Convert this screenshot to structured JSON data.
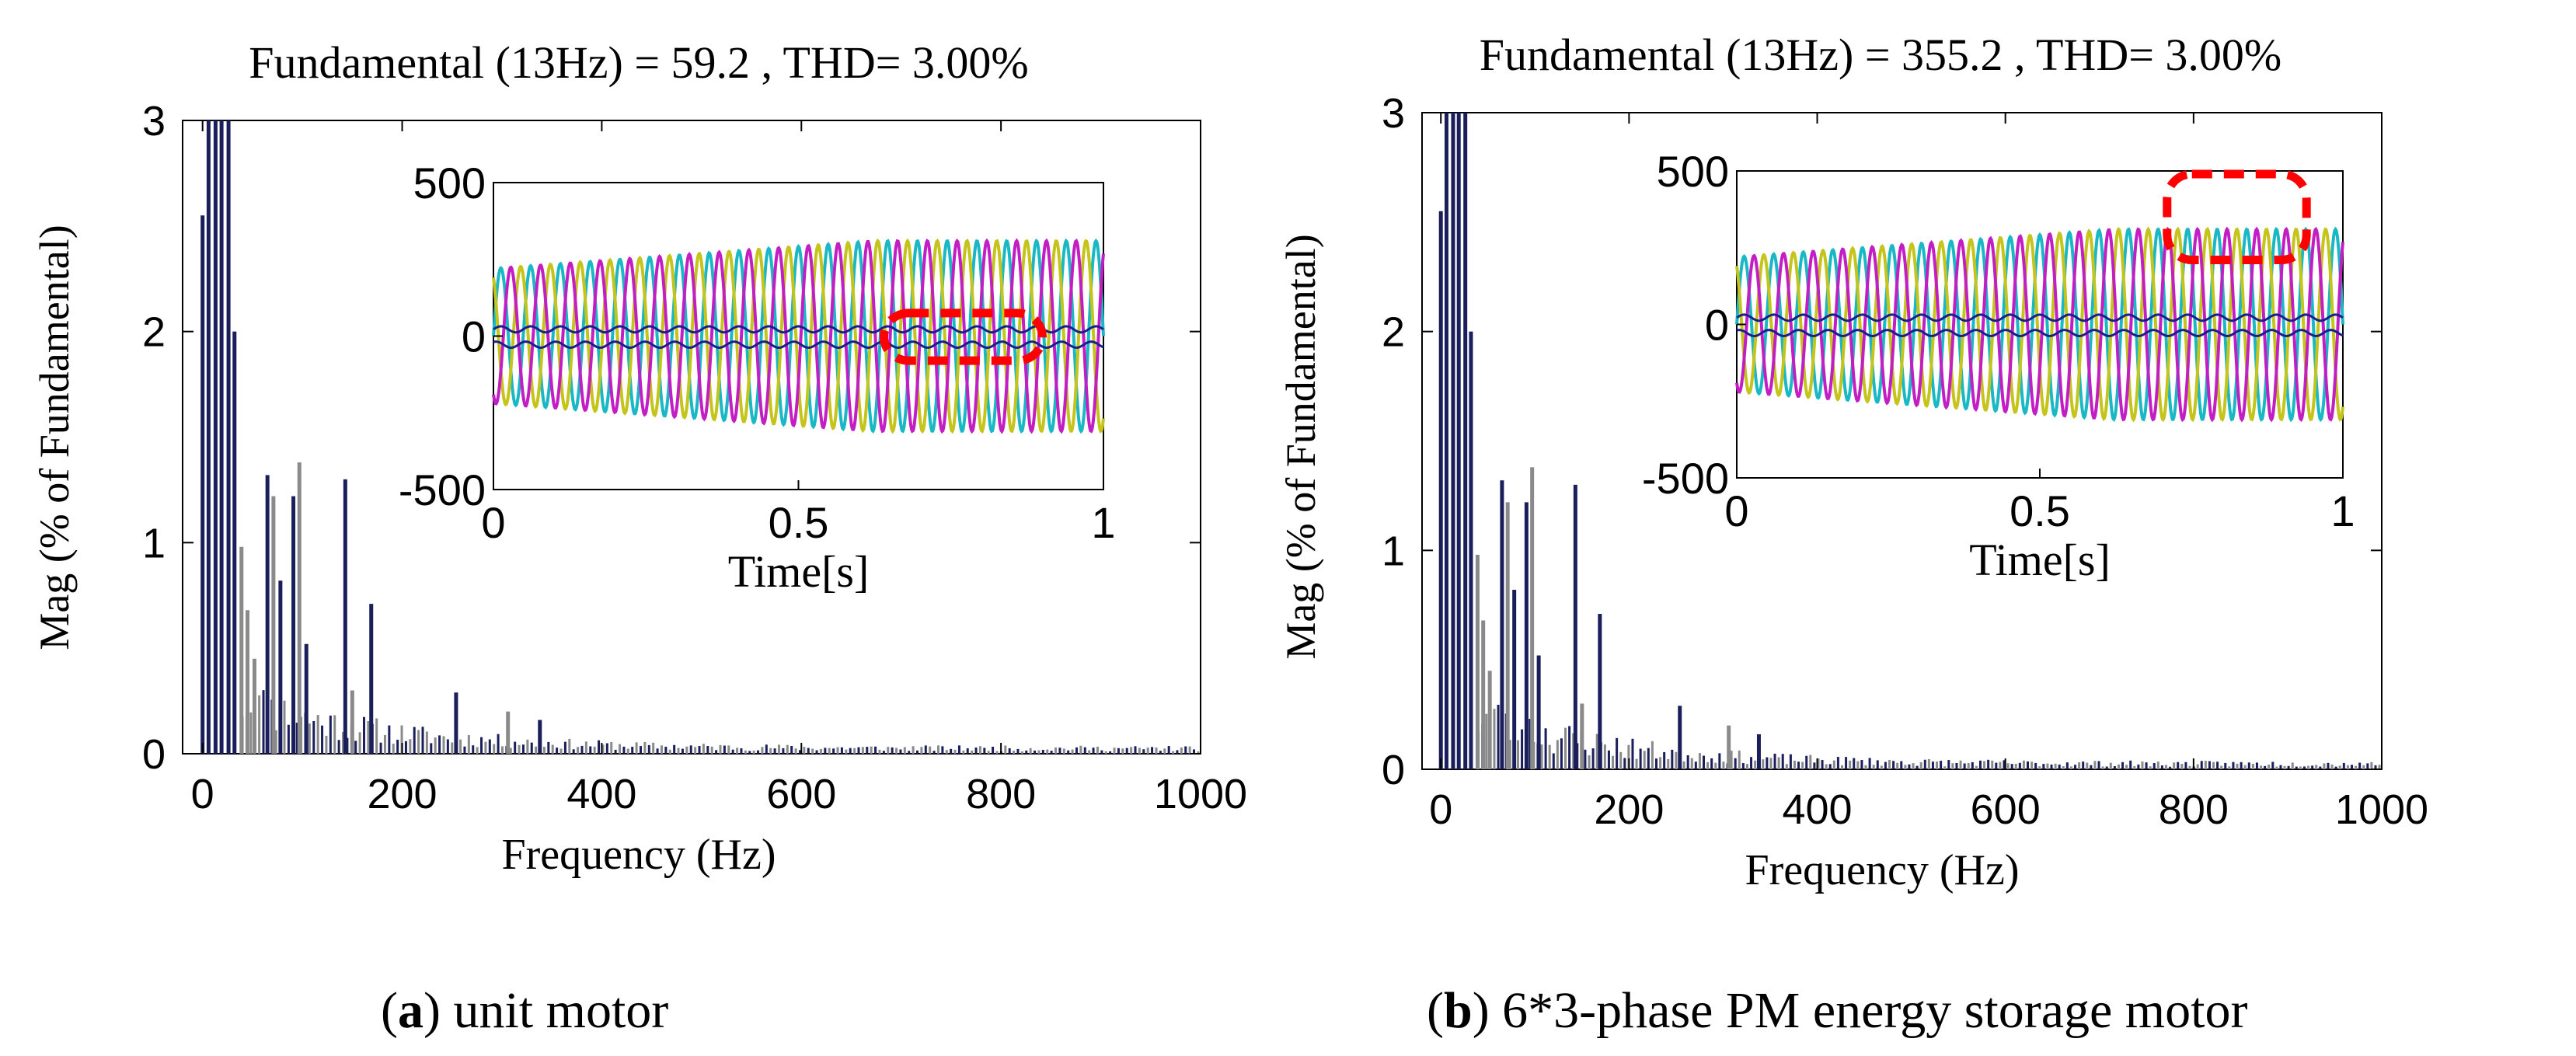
{
  "figure": {
    "panels": [
      {
        "caption_letter": "a",
        "caption_text": ") unit motor",
        "chart_data": {
          "type": "bar",
          "title": "Fundamental (13Hz) = 59.2 , THD= 3.00%",
          "xlabel": "Frequency (Hz)",
          "ylabel": "Mag (% of Fundamental)",
          "xlim": [
            -20,
            1000
          ],
          "ylim": [
            0,
            3
          ],
          "xticks": [
            0,
            200,
            400,
            600,
            800,
            1000
          ],
          "yticks": [
            0,
            1,
            2,
            3
          ],
          "spectrum_seed": 11,
          "bars": [
            {
              "x": 0,
              "y": 2.55,
              "color": "#1a1f5c"
            },
            {
              "x": 6,
              "y": 3.0,
              "color": "#1a1f5c"
            },
            {
              "x": 13,
              "y": 3.0,
              "color": "#1a1f5c"
            },
            {
              "x": 19,
              "y": 3.0,
              "color": "#1a1f5c"
            },
            {
              "x": 26,
              "y": 3.0,
              "color": "#1a1f5c"
            },
            {
              "x": 32,
              "y": 2.0,
              "color": "#1a1f5c"
            },
            {
              "x": 39,
              "y": 0.98,
              "color": "#8a8a8a"
            },
            {
              "x": 45,
              "y": 0.68,
              "color": "#8a8a8a"
            },
            {
              "x": 52,
              "y": 0.45,
              "color": "#8a8a8a"
            },
            {
              "x": 65,
              "y": 1.32,
              "color": "#1a1f5c"
            },
            {
              "x": 71,
              "y": 1.22,
              "color": "#8a8a8a"
            },
            {
              "x": 78,
              "y": 0.82,
              "color": "#1a1f5c"
            },
            {
              "x": 91,
              "y": 1.22,
              "color": "#1a1f5c"
            },
            {
              "x": 97,
              "y": 1.38,
              "color": "#8a8a8a"
            },
            {
              "x": 104,
              "y": 0.52,
              "color": "#1a1f5c"
            },
            {
              "x": 143,
              "y": 1.3,
              "color": "#1a1f5c"
            },
            {
              "x": 150,
              "y": 0.3,
              "color": "#8a8a8a"
            },
            {
              "x": 169,
              "y": 0.71,
              "color": "#1a1f5c"
            },
            {
              "x": 254,
              "y": 0.29,
              "color": "#1a1f5c"
            },
            {
              "x": 306,
              "y": 0.2,
              "color": "#8a8a8a"
            },
            {
              "x": 338,
              "y": 0.16,
              "color": "#1a1f5c"
            }
          ]
        },
        "inset": {
          "xlabel": "Time[s]",
          "xlim": [
            0,
            1
          ],
          "ylim": [
            -500,
            500
          ],
          "xticks": [
            "0",
            "0.5",
            "1"
          ],
          "yticks": [
            "500",
            "0",
            "-500"
          ],
          "series_colors": [
            "#1ab8c4",
            "#c4c41a",
            "#c21ec4",
            "#1a1f8c"
          ],
          "amplitude_start": 220,
          "amplitude_end": 310,
          "highlight": "zero-line"
        }
      },
      {
        "caption_letter": "b",
        "caption_text": ") 6*3-phase PM energy storage motor",
        "chart_data": {
          "type": "bar",
          "title": "Fundamental (13Hz) = 355.2 , THD= 3.00%",
          "xlabel": "Frequency (Hz)",
          "ylabel": "Mag (% of Fundamental)",
          "xlim": [
            -20,
            1000
          ],
          "ylim": [
            0,
            3
          ],
          "xticks": [
            0,
            200,
            400,
            600,
            800,
            1000
          ],
          "yticks": [
            0,
            1,
            2,
            3
          ],
          "spectrum_seed": 23,
          "bars": [
            {
              "x": 0,
              "y": 2.55,
              "color": "#1a1f5c"
            },
            {
              "x": 6,
              "y": 3.0,
              "color": "#1a1f5c"
            },
            {
              "x": 13,
              "y": 3.0,
              "color": "#1a1f5c"
            },
            {
              "x": 19,
              "y": 3.0,
              "color": "#1a1f5c"
            },
            {
              "x": 26,
              "y": 3.0,
              "color": "#1a1f5c"
            },
            {
              "x": 32,
              "y": 2.0,
              "color": "#1a1f5c"
            },
            {
              "x": 39,
              "y": 0.98,
              "color": "#8a8a8a"
            },
            {
              "x": 45,
              "y": 0.68,
              "color": "#8a8a8a"
            },
            {
              "x": 52,
              "y": 0.45,
              "color": "#8a8a8a"
            },
            {
              "x": 65,
              "y": 1.32,
              "color": "#1a1f5c"
            },
            {
              "x": 71,
              "y": 1.22,
              "color": "#8a8a8a"
            },
            {
              "x": 78,
              "y": 0.82,
              "color": "#1a1f5c"
            },
            {
              "x": 91,
              "y": 1.22,
              "color": "#1a1f5c"
            },
            {
              "x": 97,
              "y": 1.38,
              "color": "#8a8a8a"
            },
            {
              "x": 104,
              "y": 0.52,
              "color": "#1a1f5c"
            },
            {
              "x": 143,
              "y": 1.3,
              "color": "#1a1f5c"
            },
            {
              "x": 150,
              "y": 0.3,
              "color": "#8a8a8a"
            },
            {
              "x": 169,
              "y": 0.71,
              "color": "#1a1f5c"
            },
            {
              "x": 254,
              "y": 0.29,
              "color": "#1a1f5c"
            },
            {
              "x": 306,
              "y": 0.2,
              "color": "#8a8a8a"
            },
            {
              "x": 338,
              "y": 0.16,
              "color": "#1a1f5c"
            }
          ]
        },
        "inset": {
          "xlabel": "Time[s]",
          "xlim": [
            0,
            1
          ],
          "ylim": [
            -500,
            500
          ],
          "xticks": [
            "0",
            "0.5",
            "1"
          ],
          "yticks": [
            "500",
            "0",
            "-500"
          ],
          "series_colors": [
            "#1ab8c4",
            "#c4c41a",
            "#c21ec4",
            "#1a1f8c"
          ],
          "amplitude_start": 220,
          "amplitude_end": 310,
          "highlight": "peak"
        }
      }
    ],
    "colors": {
      "axis": "#000000",
      "highlight": "#ff0000",
      "bar_dark": "#1a1f5c",
      "bar_light": "#8a8a8a"
    }
  }
}
